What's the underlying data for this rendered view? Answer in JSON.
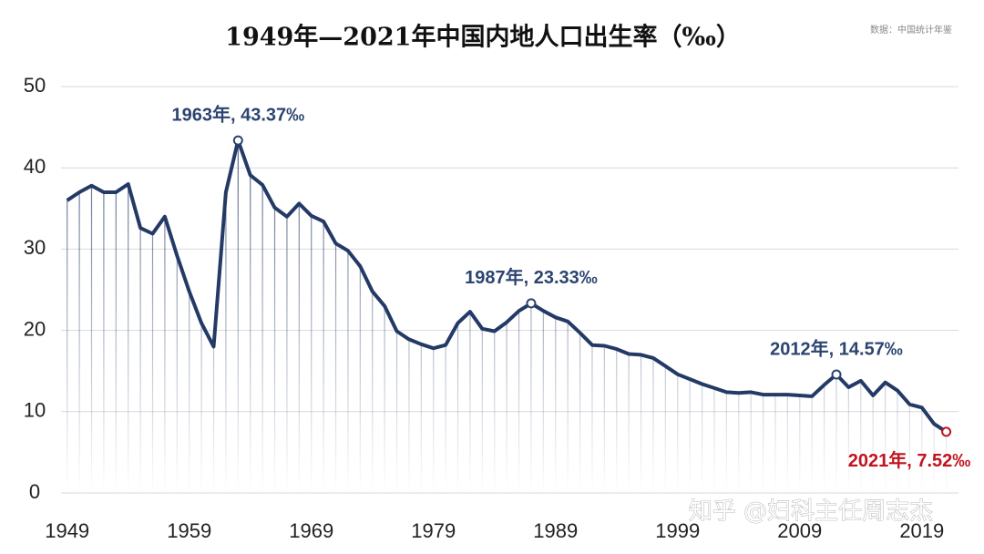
{
  "chart_data": {
    "type": "line",
    "title": "1949年—2021年中国内地人口出生率（‰）",
    "source": "数据：中国统计年鉴",
    "watermark": "知乎 @妇科主任周志杰",
    "x": [
      1949,
      1950,
      1951,
      1952,
      1953,
      1954,
      1955,
      1956,
      1957,
      1958,
      1959,
      1960,
      1961,
      1962,
      1963,
      1964,
      1965,
      1966,
      1967,
      1968,
      1969,
      1970,
      1971,
      1972,
      1973,
      1974,
      1975,
      1976,
      1977,
      1978,
      1979,
      1980,
      1981,
      1982,
      1983,
      1984,
      1985,
      1986,
      1987,
      1988,
      1989,
      1990,
      1991,
      1992,
      1993,
      1994,
      1995,
      1996,
      1997,
      1998,
      1999,
      2000,
      2001,
      2002,
      2003,
      2004,
      2005,
      2006,
      2007,
      2008,
      2009,
      2010,
      2011,
      2012,
      2013,
      2014,
      2015,
      2016,
      2017,
      2018,
      2019,
      2020,
      2021
    ],
    "series": [
      {
        "name": "出生率",
        "color": "#243a66",
        "values": [
          36.0,
          37.0,
          37.8,
          37.0,
          37.0,
          38.0,
          32.6,
          31.9,
          34.0,
          29.2,
          24.8,
          20.9,
          18.0,
          37.0,
          43.37,
          39.1,
          37.9,
          35.1,
          34.0,
          35.6,
          34.1,
          33.4,
          30.7,
          29.8,
          27.9,
          24.8,
          23.0,
          19.9,
          18.9,
          18.3,
          17.8,
          18.2,
          20.9,
          22.3,
          20.2,
          19.9,
          21.0,
          22.4,
          23.33,
          22.4,
          21.6,
          21.1,
          19.7,
          18.2,
          18.1,
          17.7,
          17.1,
          17.0,
          16.6,
          15.6,
          14.6,
          14.0,
          13.4,
          12.9,
          12.4,
          12.3,
          12.4,
          12.1,
          12.1,
          12.1,
          12.0,
          11.9,
          13.3,
          14.57,
          13.0,
          13.8,
          12.0,
          13.6,
          12.6,
          10.9,
          10.5,
          8.5,
          7.52
        ]
      }
    ],
    "xlim": [
      1948.5,
      2022
    ],
    "xticks": [
      1949,
      1959,
      1969,
      1979,
      1989,
      1999,
      2009,
      2019
    ],
    "ylim": [
      0,
      50
    ],
    "yticks": [
      0,
      10,
      20,
      30,
      40,
      50
    ],
    "grid": true,
    "annotations": [
      {
        "text": "1963年, 43.37‰",
        "x": 1963,
        "color": "#2c4470"
      },
      {
        "text": "1987年, 23.33‰",
        "x": 1987,
        "color": "#2c4470"
      },
      {
        "text": "2012年, 14.57‰",
        "x": 2012,
        "color": "#2c4470"
      },
      {
        "text": "2021年, 7.52‰",
        "x": 2021,
        "color": "#c0141e"
      }
    ]
  }
}
